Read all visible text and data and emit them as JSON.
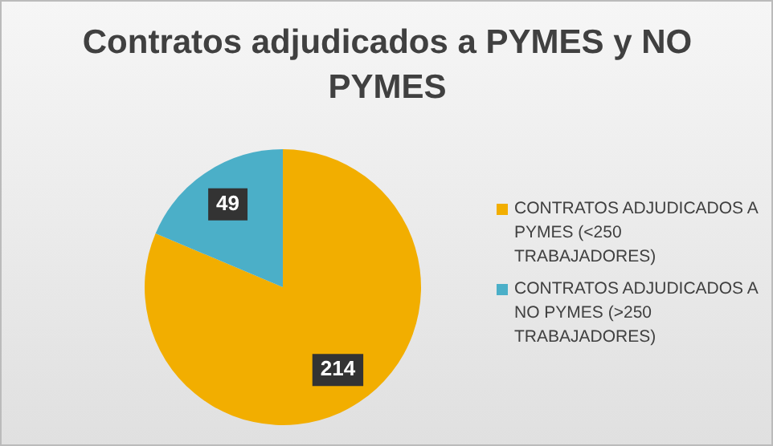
{
  "chart_data": {
    "type": "pie",
    "title": "Contratos adjudicados a PYMES  y NO PYMES",
    "categories": [
      "CONTRATOS ADJUDICADOS A PYMES (<250 TRABAJADORES)",
      "CONTRATOS ADJUDICADOS A NO PYMES (>250 TRABAJADORES)"
    ],
    "values": [
      214,
      49
    ],
    "colors": [
      "#f2ae00",
      "#4bafc8"
    ],
    "data_labels": true,
    "legend": "right"
  }
}
